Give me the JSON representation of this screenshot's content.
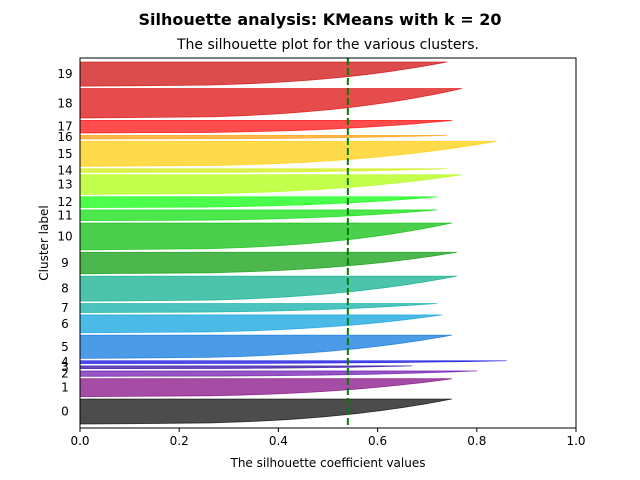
{
  "chart_data": {
    "type": "area",
    "suptitle": "Silhouette analysis: KMeans with k = 20",
    "title": "The silhouette plot for the various clusters.",
    "xlabel": "The silhouette coefficient values",
    "ylabel": "Cluster label",
    "xlim": [
      0.0,
      1.0
    ],
    "xticks": [
      "0.0",
      "0.2",
      "0.4",
      "0.6",
      "0.8",
      "1.0"
    ],
    "average_silhouette_score": 0.54,
    "average_line_color": "#008000",
    "grid": false,
    "legend": "none",
    "clusters": [
      {
        "label": "0",
        "max": 0.75,
        "min": 0.02,
        "size": 28,
        "color": "#000000"
      },
      {
        "label": "1",
        "max": 0.75,
        "min": 0.02,
        "size": 20,
        "color": "#7f007f"
      },
      {
        "label": "2",
        "max": 0.8,
        "min": 0.05,
        "size": 6,
        "color": "#6a0dad"
      },
      {
        "label": "3",
        "max": 0.67,
        "min": 0.1,
        "size": 3,
        "color": "#2a00a0"
      },
      {
        "label": "4",
        "max": 0.86,
        "min": 0.1,
        "size": 3,
        "color": "#0000dd"
      },
      {
        "label": "5",
        "max": 0.75,
        "min": 0.02,
        "size": 26,
        "color": "#0070dd"
      },
      {
        "label": "6",
        "max": 0.73,
        "min": 0.02,
        "size": 20,
        "color": "#009ddd"
      },
      {
        "label": "7",
        "max": 0.72,
        "min": 0.02,
        "size": 10,
        "color": "#00aaa4"
      },
      {
        "label": "8",
        "max": 0.76,
        "min": 0.02,
        "size": 28,
        "color": "#00aa88"
      },
      {
        "label": "9",
        "max": 0.76,
        "min": 0.02,
        "size": 24,
        "color": "#009900"
      },
      {
        "label": "10",
        "max": 0.75,
        "min": 0.02,
        "size": 30,
        "color": "#00bb00"
      },
      {
        "label": "11",
        "max": 0.72,
        "min": 0.02,
        "size": 12,
        "color": "#00dd00"
      },
      {
        "label": "12",
        "max": 0.72,
        "min": 0.02,
        "size": 12,
        "color": "#00ff00"
      },
      {
        "label": "13",
        "max": 0.77,
        "min": 0.02,
        "size": 22,
        "color": "#aaff00"
      },
      {
        "label": "14",
        "max": 0.74,
        "min": 0.1,
        "size": 4,
        "color": "#ccee00"
      },
      {
        "label": "15",
        "max": 0.84,
        "min": 0.02,
        "size": 28,
        "color": "#ffcc00"
      },
      {
        "label": "16",
        "max": 0.74,
        "min": 0.05,
        "size": 4,
        "color": "#ff9900"
      },
      {
        "label": "17",
        "max": 0.75,
        "min": 0.02,
        "size": 14,
        "color": "#ff0000"
      },
      {
        "label": "18",
        "max": 0.77,
        "min": 0.02,
        "size": 33,
        "color": "#dd0000"
      },
      {
        "label": "19",
        "max": 0.74,
        "min": 0.02,
        "size": 27,
        "color": "#cc0000"
      }
    ]
  }
}
